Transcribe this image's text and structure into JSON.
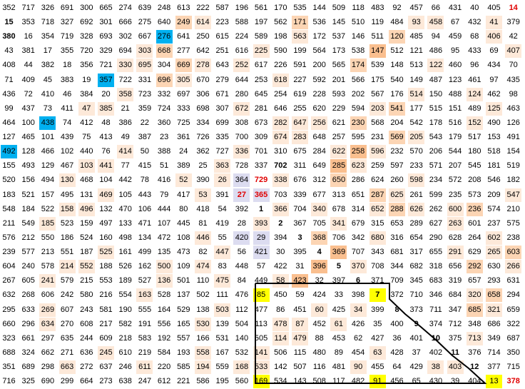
{
  "grid": {
    "rows": [
      [
        "352",
        "717",
        "326",
        "691",
        "300",
        "665",
        "274",
        "639",
        "248",
        "613",
        "222",
        "587",
        "196",
        "561",
        "170",
        "535",
        "144",
        "509",
        "118",
        "483",
        "92",
        "457",
        "66",
        "431",
        "40",
        "405",
        "14"
      ],
      [
        "15",
        "353",
        "718",
        "327",
        "692",
        "301",
        "666",
        "275",
        "640",
        "249",
        "614",
        "223",
        "588",
        "197",
        "562",
        "171",
        "536",
        "145",
        "510",
        "119",
        "484",
        "93",
        "458",
        "67",
        "432",
        "41",
        "379"
      ],
      [
        "380",
        "16",
        "354",
        "719",
        "328",
        "693",
        "302",
        "667",
        "276",
        "641",
        "250",
        "615",
        "224",
        "589",
        "198",
        "563",
        "172",
        "537",
        "146",
        "511",
        "120",
        "485",
        "94",
        "459",
        "68",
        "406",
        "42"
      ],
      [
        "43",
        "381",
        "17",
        "355",
        "720",
        "329",
        "694",
        "303",
        "668",
        "277",
        "642",
        "251",
        "616",
        "225",
        "590",
        "199",
        "564",
        "173",
        "538",
        "147",
        "512",
        "121",
        "486",
        "95",
        "433",
        "69",
        "407"
      ],
      [
        "408",
        "44",
        "382",
        "18",
        "356",
        "721",
        "330",
        "695",
        "304",
        "669",
        "278",
        "643",
        "252",
        "617",
        "226",
        "591",
        "200",
        "565",
        "174",
        "539",
        "148",
        "513",
        "122",
        "460",
        "96",
        "434",
        "70"
      ],
      [
        "71",
        "409",
        "45",
        "383",
        "19",
        "357",
        "722",
        "331",
        "696",
        "305",
        "670",
        "279",
        "644",
        "253",
        "618",
        "227",
        "592",
        "201",
        "566",
        "175",
        "540",
        "149",
        "487",
        "123",
        "461",
        "97",
        "435"
      ],
      [
        "436",
        "72",
        "410",
        "46",
        "384",
        "20",
        "358",
        "723",
        "332",
        "697",
        "306",
        "671",
        "280",
        "645",
        "254",
        "619",
        "228",
        "593",
        "202",
        "567",
        "176",
        "514",
        "150",
        "488",
        "124",
        "462",
        "98"
      ],
      [
        "99",
        "437",
        "73",
        "411",
        "47",
        "385",
        "21",
        "359",
        "724",
        "333",
        "698",
        "307",
        "672",
        "281",
        "646",
        "255",
        "620",
        "229",
        "594",
        "203",
        "541",
        "177",
        "515",
        "151",
        "489",
        "125",
        "463"
      ],
      [
        "464",
        "100",
        "438",
        "74",
        "412",
        "48",
        "386",
        "22",
        "360",
        "725",
        "334",
        "699",
        "308",
        "673",
        "282",
        "647",
        "256",
        "621",
        "230",
        "568",
        "204",
        "542",
        "178",
        "516",
        "152",
        "490",
        "126"
      ],
      [
        "127",
        "465",
        "101",
        "439",
        "75",
        "413",
        "49",
        "387",
        "23",
        "361",
        "726",
        "335",
        "700",
        "309",
        "674",
        "283",
        "648",
        "257",
        "595",
        "231",
        "569",
        "205",
        "543",
        "179",
        "517",
        "153",
        "491"
      ],
      [
        "492",
        "128",
        "466",
        "102",
        "440",
        "76",
        "414",
        "50",
        "388",
        "24",
        "362",
        "727",
        "336",
        "701",
        "310",
        "675",
        "284",
        "622",
        "258",
        "596",
        "232",
        "570",
        "206",
        "544",
        "180",
        "518",
        "154"
      ],
      [
        "155",
        "493",
        "129",
        "467",
        "103",
        "441",
        "77",
        "415",
        "51",
        "389",
        "25",
        "363",
        "728",
        "337",
        "702",
        "311",
        "649",
        "285",
        "623",
        "259",
        "597",
        "233",
        "571",
        "207",
        "545",
        "181",
        "519"
      ],
      [
        "520",
        "156",
        "494",
        "130",
        "468",
        "104",
        "442",
        "78",
        "416",
        "52",
        "390",
        "26",
        "364",
        "729",
        "338",
        "676",
        "312",
        "650",
        "286",
        "624",
        "260",
        "598",
        "234",
        "572",
        "208",
        "546",
        "182"
      ],
      [
        "183",
        "521",
        "157",
        "495",
        "131",
        "469",
        "105",
        "443",
        "79",
        "417",
        "53",
        "391",
        "27",
        "365",
        "703",
        "339",
        "677",
        "313",
        "651",
        "287",
        "625",
        "261",
        "599",
        "235",
        "573",
        "209",
        "547"
      ],
      [
        "548",
        "184",
        "522",
        "158",
        "496",
        "132",
        "470",
        "106",
        "444",
        "80",
        "418",
        "54",
        "392",
        "1",
        "366",
        "704",
        "340",
        "678",
        "314",
        "652",
        "288",
        "626",
        "262",
        "600",
        "236",
        "574",
        "210"
      ],
      [
        "211",
        "549",
        "185",
        "523",
        "159",
        "497",
        "133",
        "471",
        "107",
        "445",
        "81",
        "419",
        "28",
        "393",
        "2",
        "367",
        "705",
        "341",
        "679",
        "315",
        "653",
        "289",
        "627",
        "263",
        "601",
        "237",
        "575"
      ],
      [
        "576",
        "212",
        "550",
        "186",
        "524",
        "160",
        "498",
        "134",
        "472",
        "108",
        "446",
        "55",
        "420",
        "29",
        "394",
        "3",
        "368",
        "706",
        "342",
        "680",
        "316",
        "654",
        "290",
        "628",
        "264",
        "602",
        "238"
      ],
      [
        "239",
        "577",
        "213",
        "551",
        "187",
        "525",
        "161",
        "499",
        "135",
        "473",
        "82",
        "447",
        "56",
        "421",
        "30",
        "395",
        "4",
        "369",
        "707",
        "343",
        "681",
        "317",
        "655",
        "291",
        "629",
        "265",
        "603"
      ],
      [
        "604",
        "240",
        "578",
        "214",
        "552",
        "188",
        "526",
        "162",
        "500",
        "109",
        "474",
        "83",
        "448",
        "57",
        "422",
        "31",
        "396",
        "5",
        "370",
        "708",
        "344",
        "682",
        "318",
        "656",
        "292",
        "630",
        "266"
      ],
      [
        "267",
        "605",
        "241",
        "579",
        "215",
        "553",
        "189",
        "527",
        "136",
        "501",
        "110",
        "475",
        "84",
        "449",
        "58",
        "423",
        "32",
        "397",
        "6",
        "371",
        "709",
        "345",
        "683",
        "319",
        "657",
        "293",
        "631"
      ],
      [
        "632",
        "268",
        "606",
        "242",
        "580",
        "216",
        "554",
        "163",
        "528",
        "137",
        "502",
        "111",
        "476",
        "85",
        "450",
        "59",
        "424",
        "33",
        "398",
        "7",
        "372",
        "710",
        "346",
        "684",
        "320",
        "658",
        "294"
      ],
      [
        "295",
        "633",
        "269",
        "607",
        "243",
        "581",
        "190",
        "555",
        "164",
        "529",
        "138",
        "503",
        "112",
        "477",
        "86",
        "451",
        "60",
        "425",
        "34",
        "399",
        "8",
        "373",
        "711",
        "347",
        "685",
        "321",
        "659"
      ],
      [
        "660",
        "296",
        "634",
        "270",
        "608",
        "217",
        "582",
        "191",
        "556",
        "165",
        "530",
        "139",
        "504",
        "113",
        "478",
        "87",
        "452",
        "61",
        "426",
        "35",
        "400",
        "9",
        "374",
        "712",
        "348",
        "686",
        "322"
      ],
      [
        "323",
        "661",
        "297",
        "635",
        "244",
        "609",
        "218",
        "583",
        "192",
        "557",
        "166",
        "531",
        "140",
        "505",
        "114",
        "479",
        "88",
        "453",
        "62",
        "427",
        "36",
        "401",
        "10",
        "375",
        "713",
        "349",
        "687"
      ],
      [
        "688",
        "324",
        "662",
        "271",
        "636",
        "245",
        "610",
        "219",
        "584",
        "193",
        "558",
        "167",
        "532",
        "141",
        "506",
        "115",
        "480",
        "89",
        "454",
        "63",
        "428",
        "37",
        "402",
        "11",
        "376",
        "714",
        "350"
      ],
      [
        "351",
        "689",
        "298",
        "663",
        "272",
        "637",
        "246",
        "611",
        "220",
        "585",
        "194",
        "559",
        "168",
        "533",
        "142",
        "507",
        "116",
        "481",
        "90",
        "455",
        "64",
        "429",
        "38",
        "403",
        "12",
        "377",
        "715"
      ],
      [
        "716",
        "325",
        "690",
        "299",
        "664",
        "273",
        "638",
        "247",
        "612",
        "221",
        "586",
        "195",
        "560",
        "169",
        "534",
        "143",
        "508",
        "117",
        "482",
        "91",
        "456",
        "65",
        "430",
        "39",
        "404",
        "13",
        "378"
      ]
    ]
  },
  "colors": {
    "light": "#fde9d9",
    "mid": "#fcd5b4",
    "dark": "#fabf8f",
    "blue": "#00b0f0",
    "lavender": "#dcdcf0",
    "yellow": "#ffff00",
    "red_text": "#e00000"
  }
}
